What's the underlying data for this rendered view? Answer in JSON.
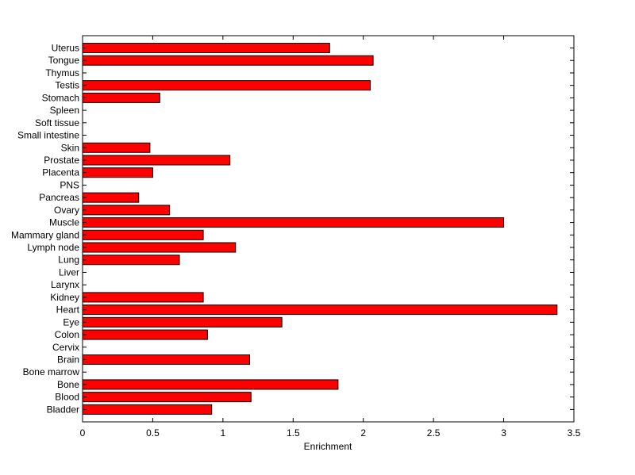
{
  "chart_data": {
    "type": "bar",
    "orientation": "horizontal",
    "title": "",
    "xlabel": "Enrichment",
    "ylabel": "",
    "xlim": [
      0,
      3.5
    ],
    "xticks": [
      "0",
      "0.5",
      "1",
      "1.5",
      "2",
      "2.5",
      "3",
      "3.5"
    ],
    "categories": [
      "Uterus",
      "Tongue",
      "Thymus",
      "Testis",
      "Stomach",
      "Spleen",
      "Soft tissue",
      "Small intestine",
      "Skin",
      "Prostate",
      "Placenta",
      "PNS",
      "Pancreas",
      "Ovary",
      "Muscle",
      "Mammary gland",
      "Lymph node",
      "Lung",
      "Liver",
      "Larynx",
      "Kidney",
      "Heart",
      "Eye",
      "Colon",
      "Cervix",
      "Brain",
      "Bone marrow",
      "Bone",
      "Blood",
      "Bladder"
    ],
    "values": [
      1.76,
      2.07,
      0,
      2.05,
      0.55,
      0,
      0,
      0,
      0.48,
      1.05,
      0.5,
      0,
      0.4,
      0.62,
      3.0,
      0.86,
      1.09,
      0.69,
      0,
      0,
      0.86,
      3.38,
      1.42,
      0.89,
      0,
      1.19,
      0,
      1.82,
      1.2,
      0.92
    ],
    "bar_color": "#ff0000",
    "grid": false,
    "legend": "none"
  }
}
